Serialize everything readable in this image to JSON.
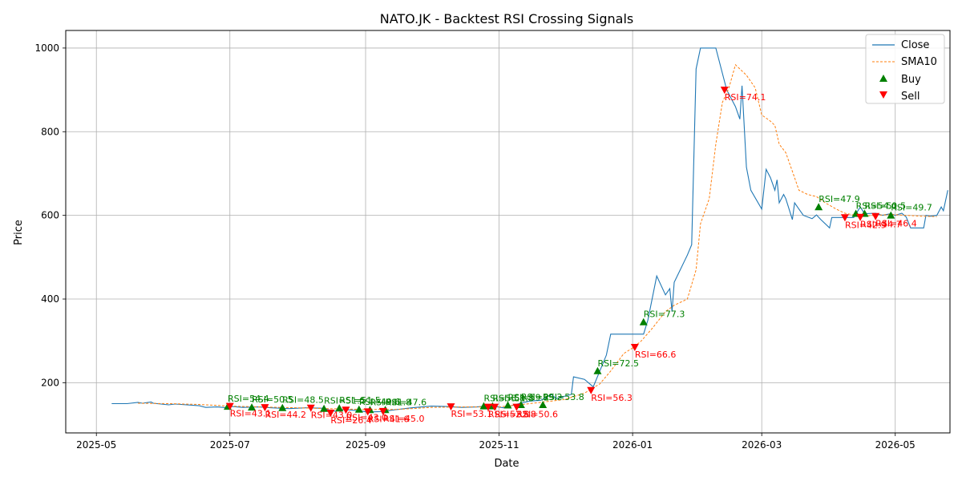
{
  "chart_data": {
    "type": "line",
    "title": "NATO.JK - Backtest RSI Crossing Signals",
    "xlabel": "Date",
    "ylabel": "Price",
    "xlim": [
      "2025-04-17",
      "2026-05-26"
    ],
    "ylim": [
      80,
      1042
    ],
    "x_ticks": [
      {
        "date": "2025-05-01",
        "label": "2025-05"
      },
      {
        "date": "2025-07-01",
        "label": "2025-07"
      },
      {
        "date": "2025-09-01",
        "label": "2025-09"
      },
      {
        "date": "2025-11-01",
        "label": "2025-11"
      },
      {
        "date": "2026-01-01",
        "label": "2026-01"
      },
      {
        "date": "2026-03-01",
        "label": "2026-03"
      },
      {
        "date": "2026-05-01",
        "label": "2026-05"
      }
    ],
    "y_ticks": [
      200,
      400,
      600,
      800,
      1000
    ],
    "grid": true,
    "legend_position": "top-right",
    "colors": {
      "close": "#1f77b4",
      "sma": "#ff7f0e",
      "buy": "#008000",
      "sell": "#ff0000"
    },
    "series": [
      {
        "name": "Close",
        "style": "solid",
        "points": [
          [
            "2025-05-08",
            150
          ],
          [
            "2025-05-15",
            150
          ],
          [
            "2025-05-20",
            153
          ],
          [
            "2025-05-22",
            151
          ],
          [
            "2025-05-26",
            154
          ],
          [
            "2025-05-27",
            151
          ],
          [
            "2025-06-03",
            147
          ],
          [
            "2025-06-06",
            149
          ],
          [
            "2025-06-17",
            145
          ],
          [
            "2025-06-20",
            141
          ],
          [
            "2025-06-25",
            142
          ],
          [
            "2025-06-30",
            140
          ],
          [
            "2025-07-02",
            143
          ],
          [
            "2025-07-07",
            141
          ],
          [
            "2025-07-14",
            142
          ],
          [
            "2025-07-20",
            140
          ],
          [
            "2025-07-28",
            138
          ],
          [
            "2025-08-05",
            140
          ],
          [
            "2025-08-12",
            139
          ],
          [
            "2025-08-18",
            132
          ],
          [
            "2025-08-22",
            136
          ],
          [
            "2025-08-27",
            134
          ],
          [
            "2025-09-02",
            130
          ],
          [
            "2025-09-08",
            131
          ],
          [
            "2025-09-14",
            135
          ],
          [
            "2025-09-22",
            140
          ],
          [
            "2025-10-01",
            144
          ],
          [
            "2025-10-08",
            143
          ],
          [
            "2025-10-15",
            141
          ],
          [
            "2025-10-22",
            142
          ],
          [
            "2025-10-28",
            145
          ],
          [
            "2025-11-03",
            140
          ],
          [
            "2025-11-10",
            150
          ],
          [
            "2025-11-15",
            156
          ],
          [
            "2025-11-20",
            158
          ],
          [
            "2025-11-25",
            172
          ],
          [
            "2025-11-27",
            162
          ],
          [
            "2025-12-04",
            172
          ],
          [
            "2025-12-05",
            214
          ],
          [
            "2025-12-10",
            208
          ],
          [
            "2025-12-14",
            190
          ],
          [
            "2025-12-17",
            228
          ],
          [
            "2025-12-20",
            266
          ],
          [
            "2025-12-22",
            316
          ],
          [
            "2025-12-28",
            316
          ],
          [
            "2026-01-02",
            316
          ],
          [
            "2026-01-06",
            316
          ],
          [
            "2026-01-08",
            350
          ],
          [
            "2026-01-12",
            455
          ],
          [
            "2026-01-16",
            410
          ],
          [
            "2026-01-18",
            425
          ],
          [
            "2026-01-19",
            370
          ],
          [
            "2026-01-20",
            440
          ],
          [
            "2026-01-26",
            505
          ],
          [
            "2026-01-28",
            530
          ],
          [
            "2026-01-30",
            950
          ],
          [
            "2026-02-01",
            1000
          ],
          [
            "2026-02-03",
            1000
          ],
          [
            "2026-02-08",
            1000
          ],
          [
            "2026-02-13",
            900
          ],
          [
            "2026-02-17",
            860
          ],
          [
            "2026-02-19",
            830
          ],
          [
            "2026-02-20",
            910
          ],
          [
            "2026-02-22",
            715
          ],
          [
            "2026-02-24",
            660
          ],
          [
            "2026-03-01",
            615
          ],
          [
            "2026-03-03",
            710
          ],
          [
            "2026-03-05",
            690
          ],
          [
            "2026-03-07",
            660
          ],
          [
            "2026-03-08",
            685
          ],
          [
            "2026-03-09",
            630
          ],
          [
            "2026-03-11",
            650
          ],
          [
            "2026-03-12",
            640
          ],
          [
            "2026-03-15",
            590
          ],
          [
            "2026-03-16",
            630
          ],
          [
            "2026-03-18",
            615
          ],
          [
            "2026-03-20",
            600
          ],
          [
            "2026-03-24",
            592
          ],
          [
            "2026-03-26",
            601
          ],
          [
            "2026-03-28",
            590
          ],
          [
            "2026-04-01",
            570
          ],
          [
            "2026-04-02",
            595
          ],
          [
            "2026-04-12",
            595
          ],
          [
            "2026-04-15",
            620
          ],
          [
            "2026-04-17",
            604
          ],
          [
            "2026-04-22",
            605
          ],
          [
            "2026-04-25",
            600
          ],
          [
            "2026-04-29",
            604
          ],
          [
            "2026-05-01",
            600
          ],
          [
            "2026-05-04",
            605
          ],
          [
            "2026-05-06",
            596
          ],
          [
            "2026-05-08",
            570
          ],
          [
            "2026-05-14",
            570
          ],
          [
            "2026-05-15",
            600
          ],
          [
            "2026-05-17",
            598
          ],
          [
            "2026-05-20",
            600
          ],
          [
            "2026-05-22",
            620
          ],
          [
            "2026-05-23",
            611
          ],
          [
            "2026-05-25",
            660
          ]
        ]
      },
      {
        "name": "SMA10",
        "style": "dashed",
        "points": [
          [
            "2025-05-20",
            151
          ],
          [
            "2025-06-03",
            150
          ],
          [
            "2025-06-17",
            148
          ],
          [
            "2025-07-01",
            144
          ],
          [
            "2025-07-15",
            142
          ],
          [
            "2025-08-01",
            140
          ],
          [
            "2025-08-15",
            138
          ],
          [
            "2025-09-01",
            136
          ],
          [
            "2025-09-15",
            136
          ],
          [
            "2025-10-01",
            141
          ],
          [
            "2025-10-15",
            142
          ],
          [
            "2025-11-01",
            142
          ],
          [
            "2025-11-15",
            150
          ],
          [
            "2025-12-01",
            160
          ],
          [
            "2025-12-10",
            175
          ],
          [
            "2025-12-17",
            197
          ],
          [
            "2025-12-22",
            228
          ],
          [
            "2025-12-28",
            270
          ],
          [
            "2026-01-01",
            283
          ],
          [
            "2026-01-05",
            300
          ],
          [
            "2026-01-10",
            330
          ],
          [
            "2026-01-16",
            370
          ],
          [
            "2026-01-20",
            385
          ],
          [
            "2026-01-26",
            400
          ],
          [
            "2026-01-30",
            470
          ],
          [
            "2026-02-01",
            580
          ],
          [
            "2026-02-05",
            640
          ],
          [
            "2026-02-08",
            770
          ],
          [
            "2026-02-11",
            870
          ],
          [
            "2026-02-14",
            905
          ],
          [
            "2026-02-17",
            960
          ],
          [
            "2026-02-22",
            935
          ],
          [
            "2026-02-26",
            905
          ],
          [
            "2026-03-01",
            840
          ],
          [
            "2026-03-05",
            825
          ],
          [
            "2026-03-07",
            815
          ],
          [
            "2026-03-09",
            770
          ],
          [
            "2026-03-12",
            750
          ],
          [
            "2026-03-16",
            690
          ],
          [
            "2026-03-18",
            660
          ],
          [
            "2026-03-22",
            650
          ],
          [
            "2026-03-26",
            645
          ],
          [
            "2026-03-30",
            630
          ],
          [
            "2026-04-04",
            615
          ],
          [
            "2026-04-08",
            605
          ],
          [
            "2026-04-15",
            598
          ],
          [
            "2026-04-22",
            600
          ],
          [
            "2026-04-29",
            602
          ],
          [
            "2026-05-06",
            600
          ],
          [
            "2026-05-13",
            598
          ],
          [
            "2026-05-20",
            597
          ]
        ]
      }
    ],
    "signals": {
      "buy": [
        {
          "date": "2025-06-30",
          "price": 143,
          "label": "RSI=54.4"
        },
        {
          "date": "2025-07-11",
          "price": 141,
          "label": "RSI=50.5"
        },
        {
          "date": "2025-07-25",
          "price": 140,
          "label": "RSI=48.5"
        },
        {
          "date": "2025-08-13",
          "price": 138,
          "label": "RSI=51.5"
        },
        {
          "date": "2025-08-20",
          "price": 139,
          "label": "RSI=51.5"
        },
        {
          "date": "2025-08-29",
          "price": 136,
          "label": "RSI=49.6"
        },
        {
          "date": "2025-09-03",
          "price": 135,
          "label": "RSI=41.8"
        },
        {
          "date": "2025-09-10",
          "price": 135,
          "label": "RSI=47.6"
        },
        {
          "date": "2025-10-25",
          "price": 144,
          "label": "RSI=55.8"
        },
        {
          "date": "2025-10-29",
          "price": 144,
          "label": "RSI=51.8"
        },
        {
          "date": "2025-11-05",
          "price": 146,
          "label": "RSI=59.2"
        },
        {
          "date": "2025-11-11",
          "price": 147,
          "label": "RSI=59.2"
        },
        {
          "date": "2025-11-21",
          "price": 147,
          "label": "RSI=53.8"
        },
        {
          "date": "2025-12-16",
          "price": 228,
          "label": "RSI=72.5"
        },
        {
          "date": "2026-01-06",
          "price": 345,
          "label": "RSI=77.3"
        },
        {
          "date": "2026-03-27",
          "price": 620,
          "label": "RSI=47.9"
        },
        {
          "date": "2026-04-13",
          "price": 604,
          "label": "RSI=54.0"
        },
        {
          "date": "2026-04-17",
          "price": 604,
          "label": "RSI=51.5"
        },
        {
          "date": "2026-04-29",
          "price": 600,
          "label": "RSI=49.7"
        }
      ],
      "sell": [
        {
          "date": "2025-07-01",
          "price": 144,
          "label": "RSI=43.1"
        },
        {
          "date": "2025-07-17",
          "price": 141,
          "label": "RSI=44.2"
        },
        {
          "date": "2025-08-07",
          "price": 140,
          "label": "RSI=43.0"
        },
        {
          "date": "2025-08-16",
          "price": 128,
          "label": "RSI=26.4"
        },
        {
          "date": "2025-08-23",
          "price": 135,
          "label": "RSI=43.0"
        },
        {
          "date": "2025-09-02",
          "price": 131,
          "label": "RSI=41.6"
        },
        {
          "date": "2025-09-09",
          "price": 132,
          "label": "RSI=45.0"
        },
        {
          "date": "2025-10-10",
          "price": 143,
          "label": "RSI=53.1"
        },
        {
          "date": "2025-10-27",
          "price": 142,
          "label": "RSI=52.8"
        },
        {
          "date": "2025-10-30",
          "price": 142,
          "label": "RSI=52.8"
        },
        {
          "date": "2025-11-09",
          "price": 142,
          "label": "RSI=50.6"
        },
        {
          "date": "2025-12-13",
          "price": 182,
          "label": "RSI=56.3"
        },
        {
          "date": "2026-01-02",
          "price": 285,
          "label": "RSI=66.6"
        },
        {
          "date": "2026-02-12",
          "price": 900,
          "label": "RSI=74.1"
        },
        {
          "date": "2026-04-08",
          "price": 595,
          "label": "RSI=42.9"
        },
        {
          "date": "2026-04-15",
          "price": 596,
          "label": "RSI=44.7"
        },
        {
          "date": "2026-04-22",
          "price": 598,
          "label": "RSI=46.4"
        }
      ]
    },
    "legend": [
      {
        "key": "close",
        "label": "Close"
      },
      {
        "key": "sma",
        "label": "SMA10"
      },
      {
        "key": "buy",
        "label": "Buy"
      },
      {
        "key": "sell",
        "label": "Sell"
      }
    ]
  }
}
